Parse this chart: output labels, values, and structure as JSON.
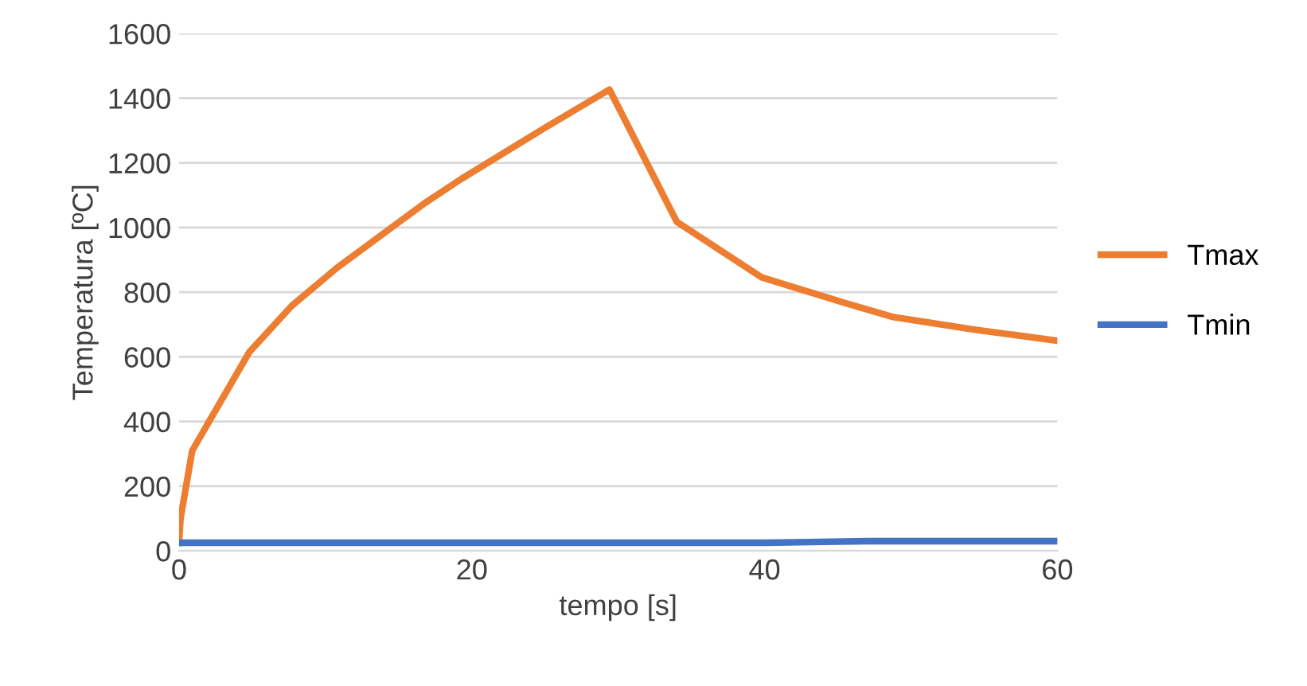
{
  "chart_data": {
    "type": "line",
    "xlabel": "tempo [s]",
    "ylabel": "Temperatura [ºC]",
    "series": [
      {
        "name": "Tmax",
        "color": "#ed7d31",
        "x": [
          0,
          0.1,
          0.9,
          4.8,
          7.7,
          10.8,
          16.7,
          19.3,
          25,
          29.4,
          34,
          39.8,
          45.4,
          48.8,
          54.4,
          60
        ],
        "values": [
          25,
          100,
          310,
          615,
          758,
          876,
          1073,
          1151,
          1309,
          1427,
          1018,
          846,
          768,
          723,
          684,
          650
        ]
      },
      {
        "name": "Tmin",
        "color": "#4472c4",
        "x": [
          0,
          10,
          20,
          30,
          40,
          47,
          54,
          60
        ],
        "values": [
          25,
          25,
          25,
          25,
          25,
          30,
          30,
          30
        ]
      }
    ],
    "xlim": [
      0,
      60
    ],
    "xticks": [
      0,
      20,
      40,
      60
    ],
    "ylim": [
      0,
      1600
    ],
    "yticks": [
      0,
      200,
      400,
      600,
      800,
      1000,
      1200,
      1400,
      1600
    ],
    "grid": "y",
    "legend": "right",
    "marker": "none",
    "line_style": "solid"
  }
}
